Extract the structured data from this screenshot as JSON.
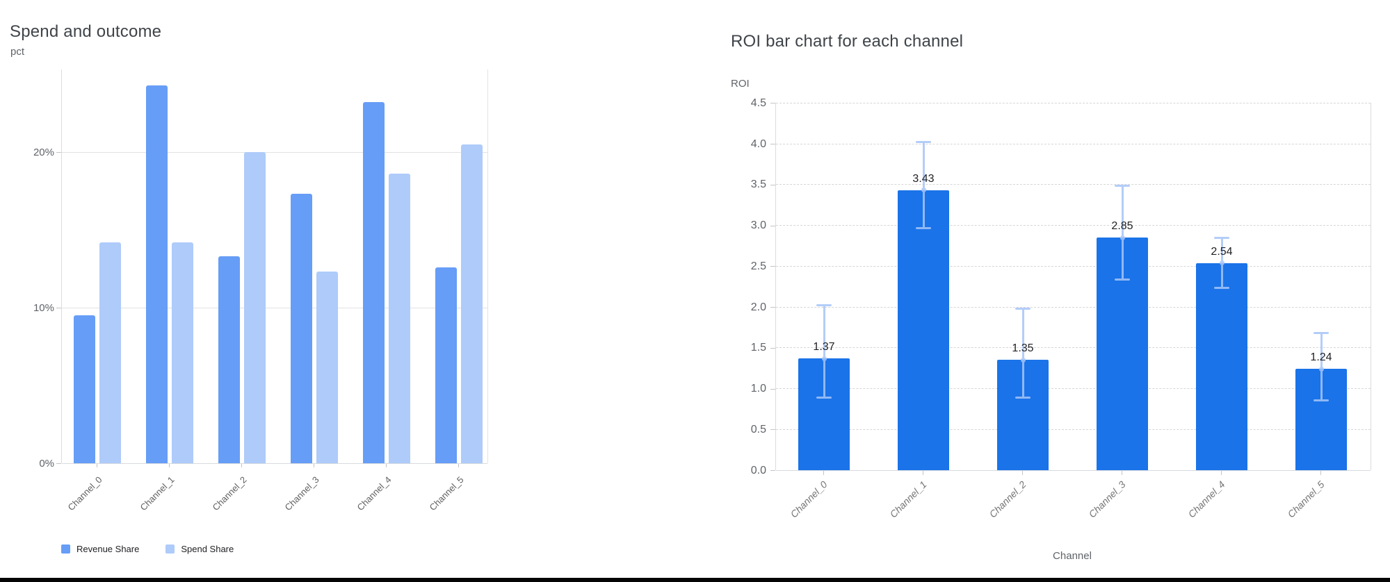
{
  "window": {
    "background": "#ffffff",
    "bottom_edge_color": "#050505"
  },
  "chart_data": [
    {
      "type": "bar",
      "title": "Spend and outcome",
      "ylabel": "pct",
      "xlabel": "",
      "categories": [
        "Channel_0",
        "Channel_1",
        "Channel_2",
        "Channel_3",
        "Channel_4",
        "Channel_5"
      ],
      "series": [
        {
          "name": "Revenue Share",
          "color": "#669df6",
          "values": [
            9.5,
            24.3,
            13.3,
            17.3,
            23.2,
            12.6
          ]
        },
        {
          "name": "Spend Share",
          "color": "#aecbfa",
          "values": [
            14.2,
            14.2,
            20.0,
            12.3,
            18.6,
            20.5
          ]
        }
      ],
      "y_ticks": [
        {
          "value": 0,
          "label": "0%"
        },
        {
          "value": 10,
          "label": "10%"
        },
        {
          "value": 20,
          "label": "20%"
        }
      ],
      "ylim": [
        0,
        25.3
      ],
      "grid": "solid",
      "legend_position": "bottom-left"
    },
    {
      "type": "bar",
      "title": "ROI bar chart for each channel",
      "ylabel": "ROI",
      "xlabel": "Channel",
      "categories": [
        "Channel_0",
        "Channel_1",
        "Channel_2",
        "Channel_3",
        "Channel_4",
        "Channel_5"
      ],
      "series": [
        {
          "name": "ROI",
          "color": "#1a73e8",
          "values": [
            1.37,
            3.43,
            1.35,
            2.85,
            2.54,
            1.24
          ]
        }
      ],
      "data_labels": [
        "1.37",
        "3.43",
        "1.35",
        "2.85",
        "2.54",
        "1.24"
      ],
      "error_bars": {
        "color": "#a6c5f9",
        "low": [
          0.88,
          2.95,
          0.88,
          2.32,
          2.22,
          0.84
        ],
        "high": [
          2.03,
          4.03,
          1.99,
          3.5,
          2.86,
          1.69
        ]
      },
      "y_ticks": [
        {
          "value": 0.0,
          "label": "0.0"
        },
        {
          "value": 0.5,
          "label": "0.5"
        },
        {
          "value": 1.0,
          "label": "1.0"
        },
        {
          "value": 1.5,
          "label": "1.5"
        },
        {
          "value": 2.0,
          "label": "2.0"
        },
        {
          "value": 2.5,
          "label": "2.5"
        },
        {
          "value": 3.0,
          "label": "3.0"
        },
        {
          "value": 3.5,
          "label": "3.5"
        },
        {
          "value": 4.0,
          "label": "4.0"
        },
        {
          "value": 4.5,
          "label": "4.5"
        }
      ],
      "ylim": [
        0,
        4.5
      ],
      "grid": "dashed",
      "legend_position": "none"
    }
  ]
}
